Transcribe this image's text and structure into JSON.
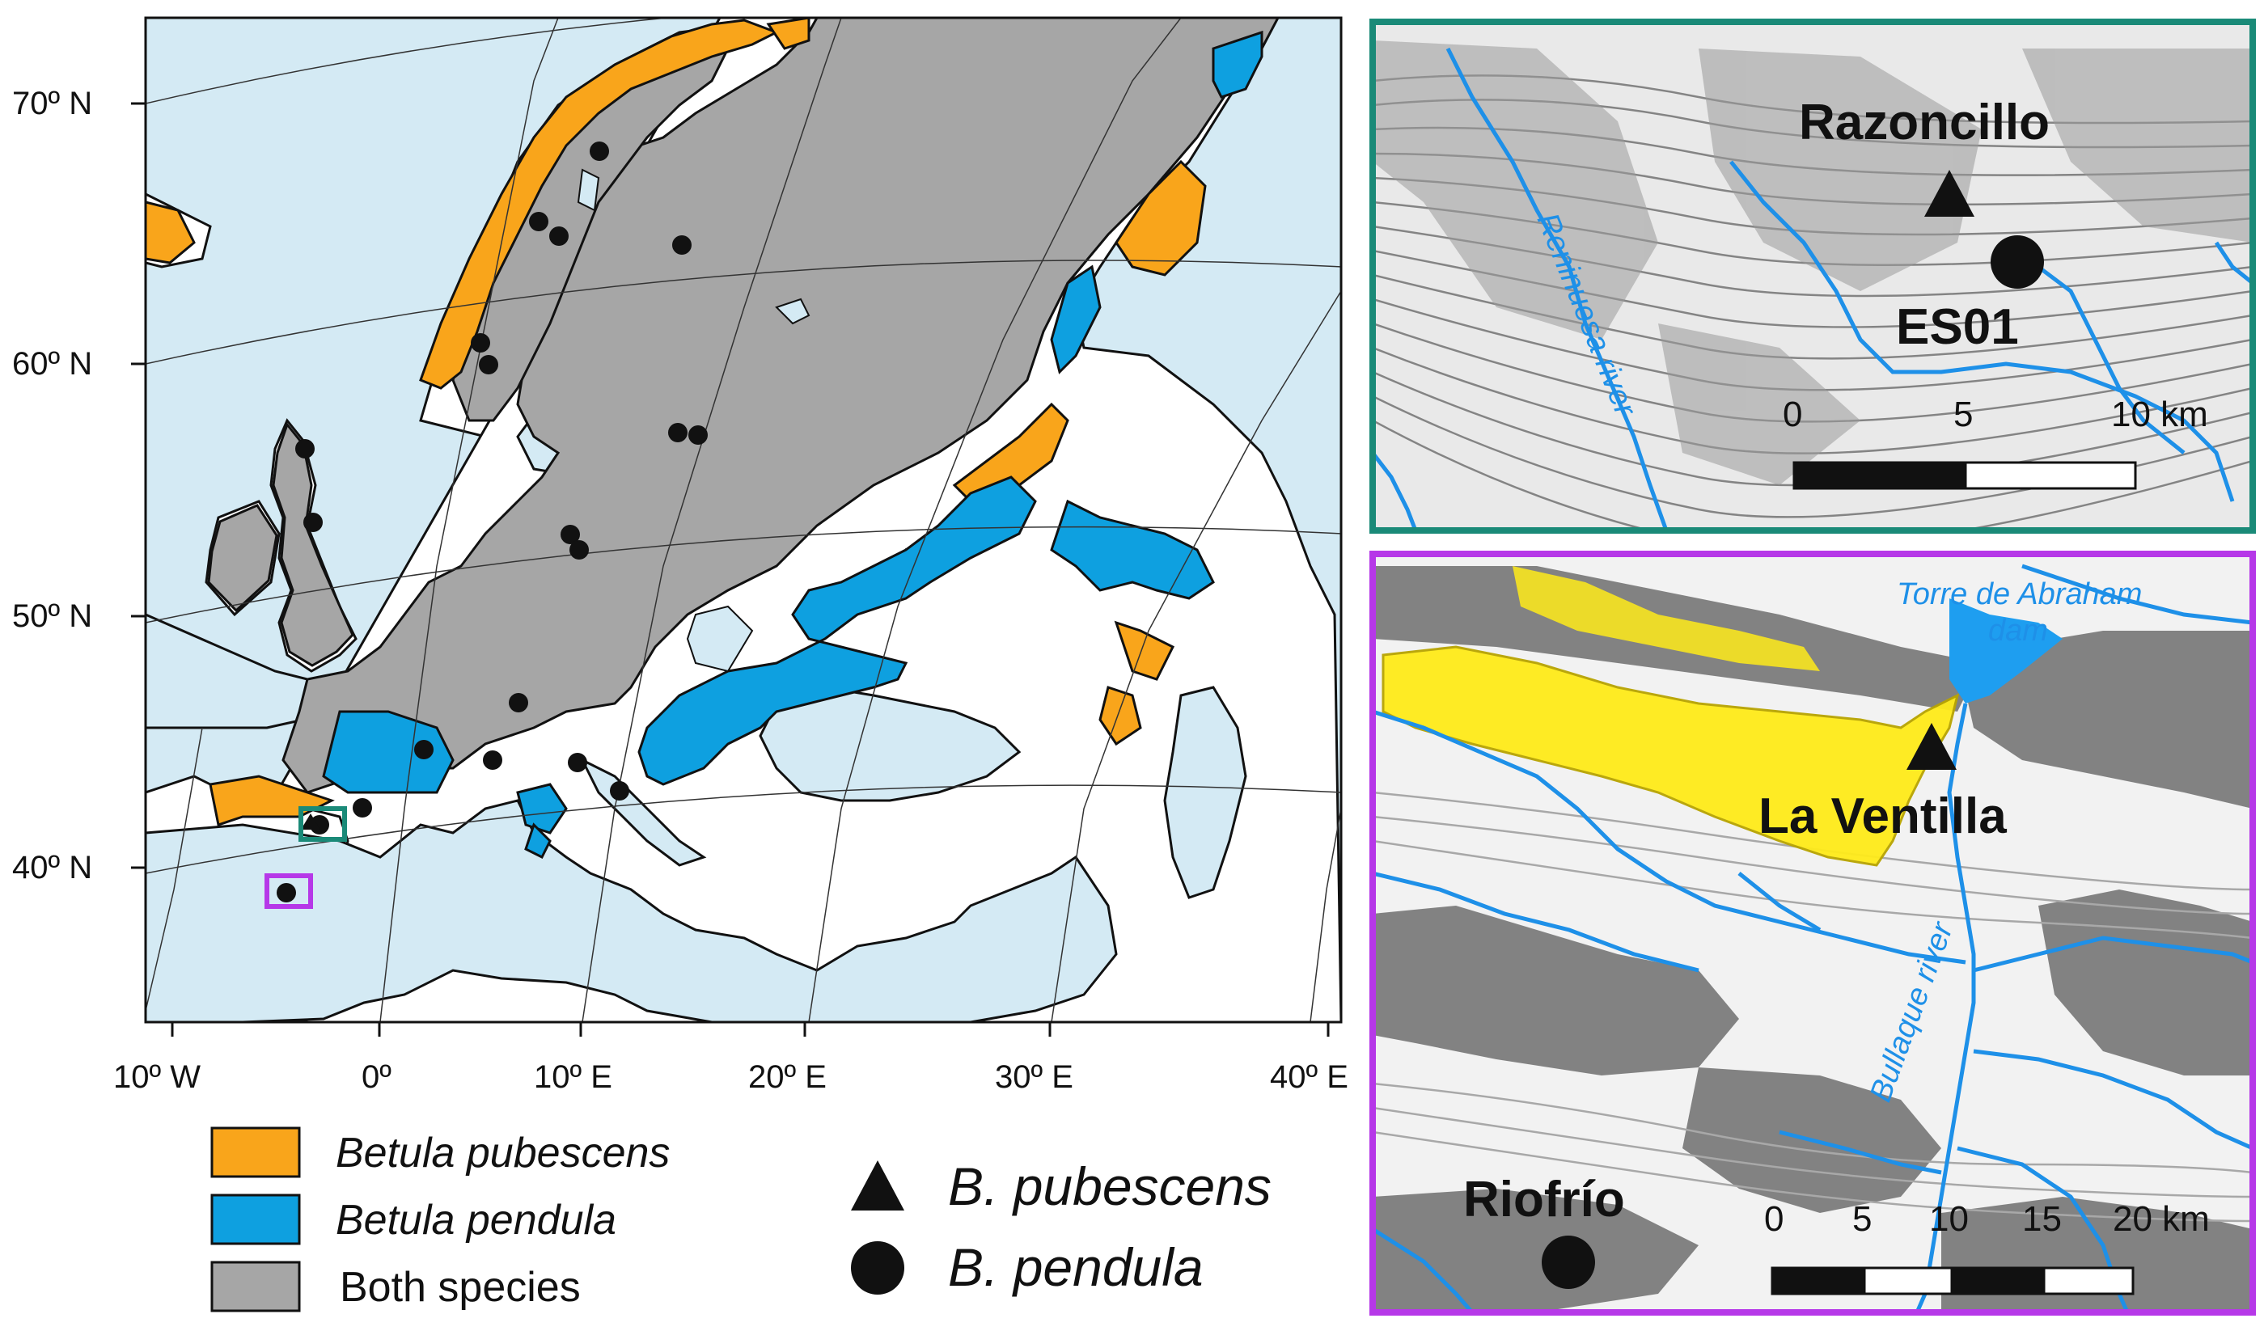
{
  "main_map": {
    "lat_labels": [
      "70º N",
      "60º N",
      "50º N",
      "40º N"
    ],
    "lon_labels": [
      "10º W",
      "0º",
      "10º E",
      "20º E",
      "30º E",
      "40º E"
    ],
    "colors": {
      "sea": "#d4eaf4",
      "land": "#ffffff",
      "pubescens": "#f9a51b",
      "pendula": "#0ea0e0",
      "both": "#a6a6a6",
      "inset_north_frame": "#1a8a78",
      "inset_south_frame": "#b638e8"
    }
  },
  "legend": {
    "areas": [
      {
        "label": "Betula pubescens",
        "italic": true,
        "color": "#f9a51b"
      },
      {
        "label": "Betula pendula",
        "italic": true,
        "color": "#0ea0e0"
      },
      {
        "label": "Both species",
        "italic": false,
        "color": "#a6a6a6"
      }
    ],
    "symbols": [
      {
        "label": "B. pubescens",
        "symbol": "triangle"
      },
      {
        "label": "B. pendula",
        "symbol": "circle"
      }
    ]
  },
  "inset_north": {
    "sites": {
      "top": "Razoncillo",
      "bottom": "ES01"
    },
    "river_label": "Reninuesa river",
    "scale": {
      "ticks": [
        "0",
        "5",
        "10 km"
      ]
    }
  },
  "inset_south": {
    "sites": {
      "main": "La Ventilla",
      "bottom": "Riofrío"
    },
    "dam_label_line1": "Torre de Abraham",
    "dam_label_line2": "dam",
    "river_label": "Bullaque river",
    "scale": {
      "ticks": [
        "0",
        "5",
        "10",
        "15",
        "20 km"
      ]
    }
  }
}
